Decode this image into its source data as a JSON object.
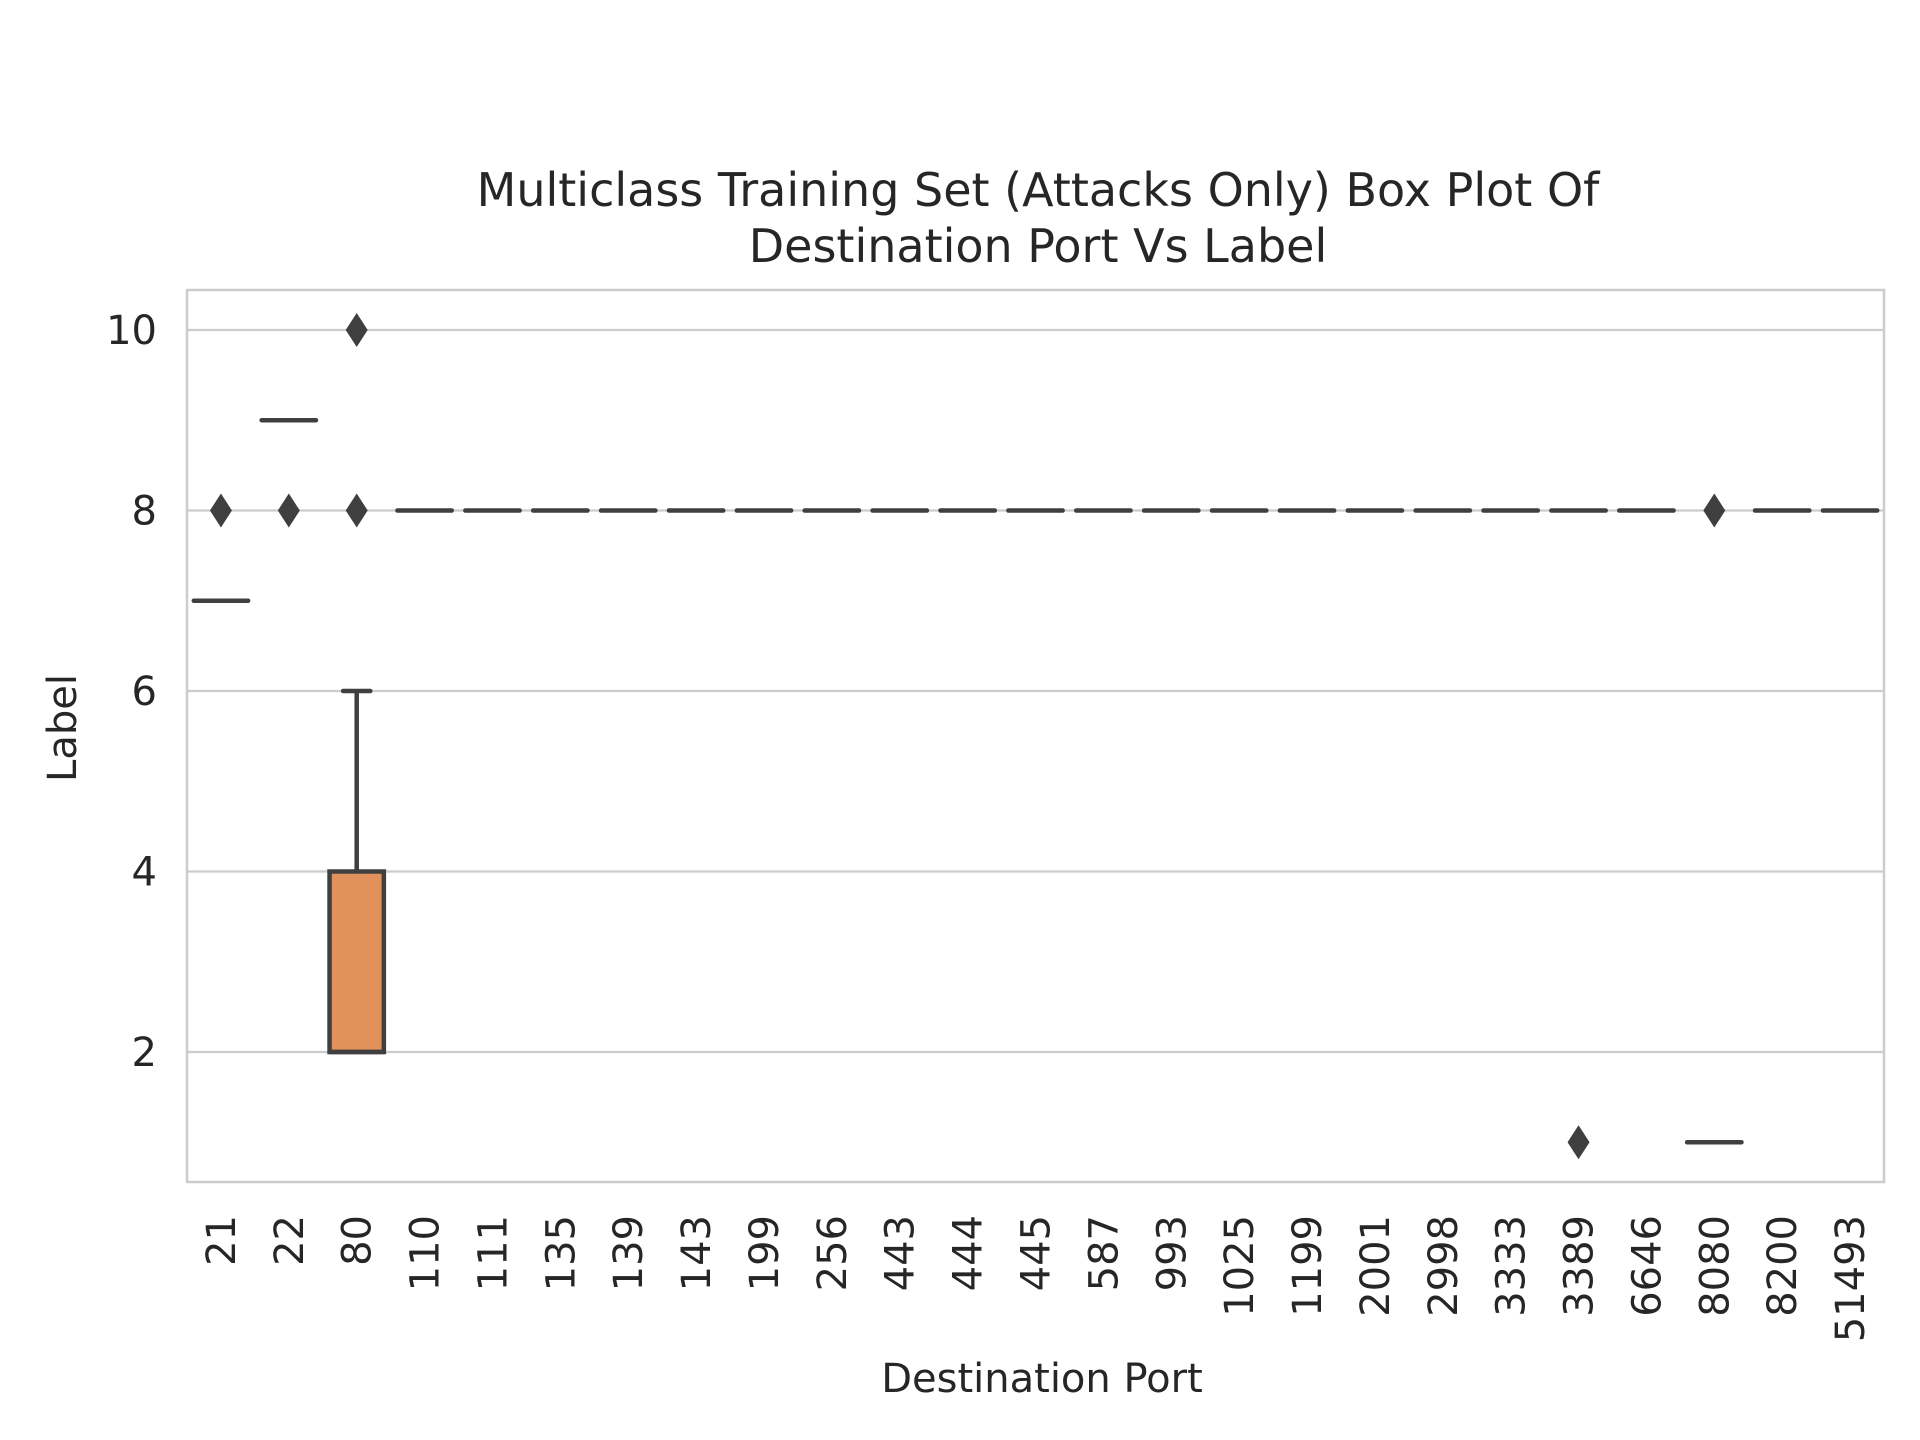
{
  "chart_data": {
    "type": "box",
    "title": "Multiclass Training Set  (Attacks Only) Box Plot Of Destination Port Vs  Label",
    "title_lines": [
      "Multiclass Training Set  (Attacks Only) Box Plot Of",
      "Destination Port Vs  Label"
    ],
    "xlabel": "Destination Port",
    "ylabel": "Label",
    "ylim": [
      0.55,
      10.45
    ],
    "yticks": [
      2,
      4,
      6,
      8,
      10
    ],
    "grid": "horizontal",
    "categories": [
      "21",
      "22",
      "80",
      "110",
      "111",
      "135",
      "139",
      "143",
      "199",
      "256",
      "443",
      "444",
      "445",
      "587",
      "993",
      "1025",
      "1199",
      "2001",
      "2998",
      "3333",
      "3389",
      "6646",
      "8080",
      "8200",
      "51493"
    ],
    "boxes": [
      {
        "port": "21",
        "q1": 7,
        "median": 7,
        "q3": 7,
        "whisker_low": 7,
        "whisker_high": 7,
        "outliers": [
          8
        ]
      },
      {
        "port": "22",
        "q1": 9,
        "median": 9,
        "q3": 9,
        "whisker_low": 9,
        "whisker_high": 9,
        "outliers": [
          8
        ]
      },
      {
        "port": "80",
        "q1": 2,
        "median": 2,
        "q3": 4,
        "whisker_low": 2,
        "whisker_high": 6,
        "outliers": [
          8,
          10
        ]
      },
      {
        "port": "110",
        "q1": 8,
        "median": 8,
        "q3": 8,
        "whisker_low": 8,
        "whisker_high": 8,
        "outliers": []
      },
      {
        "port": "111",
        "q1": 8,
        "median": 8,
        "q3": 8,
        "whisker_low": 8,
        "whisker_high": 8,
        "outliers": []
      },
      {
        "port": "135",
        "q1": 8,
        "median": 8,
        "q3": 8,
        "whisker_low": 8,
        "whisker_high": 8,
        "outliers": []
      },
      {
        "port": "139",
        "q1": 8,
        "median": 8,
        "q3": 8,
        "whisker_low": 8,
        "whisker_high": 8,
        "outliers": []
      },
      {
        "port": "143",
        "q1": 8,
        "median": 8,
        "q3": 8,
        "whisker_low": 8,
        "whisker_high": 8,
        "outliers": []
      },
      {
        "port": "199",
        "q1": 8,
        "median": 8,
        "q3": 8,
        "whisker_low": 8,
        "whisker_high": 8,
        "outliers": []
      },
      {
        "port": "256",
        "q1": 8,
        "median": 8,
        "q3": 8,
        "whisker_low": 8,
        "whisker_high": 8,
        "outliers": []
      },
      {
        "port": "443",
        "q1": 8,
        "median": 8,
        "q3": 8,
        "whisker_low": 8,
        "whisker_high": 8,
        "outliers": []
      },
      {
        "port": "444",
        "q1": 8,
        "median": 8,
        "q3": 8,
        "whisker_low": 8,
        "whisker_high": 8,
        "outliers": []
      },
      {
        "port": "445",
        "q1": 8,
        "median": 8,
        "q3": 8,
        "whisker_low": 8,
        "whisker_high": 8,
        "outliers": []
      },
      {
        "port": "587",
        "q1": 8,
        "median": 8,
        "q3": 8,
        "whisker_low": 8,
        "whisker_high": 8,
        "outliers": []
      },
      {
        "port": "993",
        "q1": 8,
        "median": 8,
        "q3": 8,
        "whisker_low": 8,
        "whisker_high": 8,
        "outliers": []
      },
      {
        "port": "1025",
        "q1": 8,
        "median": 8,
        "q3": 8,
        "whisker_low": 8,
        "whisker_high": 8,
        "outliers": []
      },
      {
        "port": "1199",
        "q1": 8,
        "median": 8,
        "q3": 8,
        "whisker_low": 8,
        "whisker_high": 8,
        "outliers": []
      },
      {
        "port": "2001",
        "q1": 8,
        "median": 8,
        "q3": 8,
        "whisker_low": 8,
        "whisker_high": 8,
        "outliers": []
      },
      {
        "port": "2998",
        "q1": 8,
        "median": 8,
        "q3": 8,
        "whisker_low": 8,
        "whisker_high": 8,
        "outliers": []
      },
      {
        "port": "3333",
        "q1": 8,
        "median": 8,
        "q3": 8,
        "whisker_low": 8,
        "whisker_high": 8,
        "outliers": []
      },
      {
        "port": "3389",
        "q1": 8,
        "median": 8,
        "q3": 8,
        "whisker_low": 8,
        "whisker_high": 8,
        "outliers": [
          1
        ]
      },
      {
        "port": "6646",
        "q1": 8,
        "median": 8,
        "q3": 8,
        "whisker_low": 8,
        "whisker_high": 8,
        "outliers": []
      },
      {
        "port": "8080",
        "q1": 1,
        "median": 1,
        "q3": 1,
        "whisker_low": 1,
        "whisker_high": 1,
        "outliers": [
          8
        ]
      },
      {
        "port": "8200",
        "q1": 8,
        "median": 8,
        "q3": 8,
        "whisker_low": 8,
        "whisker_high": 8,
        "outliers": []
      },
      {
        "port": "51493",
        "q1": 8,
        "median": 8,
        "q3": 8,
        "whisker_low": 8,
        "whisker_high": 8,
        "outliers": []
      }
    ],
    "colors": {
      "box_fill": "#e1925c",
      "line": "#3f3f3f",
      "grid": "#cccccc",
      "frame": "#cccccc",
      "text": "#262626"
    }
  }
}
